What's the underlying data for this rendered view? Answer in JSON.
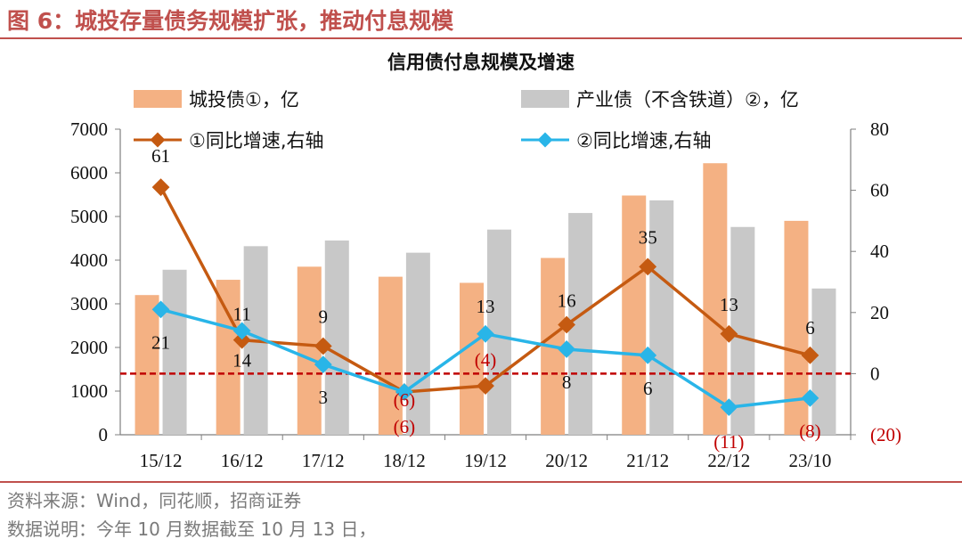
{
  "figure": {
    "title": "图 6：城投存量债务规模扩张，推动付息规模",
    "source": "资料来源：Wind，同花顺，招商证券",
    "note": "数据说明：今年 10 月数据截至 10 月 13 日，"
  },
  "colors": {
    "bar_a": "#f4b183",
    "bar_b": "#c8c8c8",
    "line_a": "#c55a11",
    "line_b": "#29b5e8",
    "ref": "#c00000",
    "accent": "#c0504d"
  },
  "chart_data": {
    "type": "bar",
    "title": "信用债付息规模及增速",
    "categories": [
      "15/12",
      "16/12",
      "17/12",
      "18/12",
      "19/12",
      "20/12",
      "21/12",
      "22/12",
      "23/10"
    ],
    "series": [
      {
        "name": "城投债①，亿",
        "kind": "bar",
        "axis": "left",
        "values": [
          3200,
          3550,
          3850,
          3620,
          3480,
          4050,
          5480,
          6220,
          4900
        ]
      },
      {
        "name": "产业债（不含铁道）②，亿",
        "kind": "bar",
        "axis": "left",
        "values": [
          3780,
          4320,
          4450,
          4170,
          4700,
          5080,
          5370,
          4760,
          3350
        ]
      },
      {
        "name": "①同比增速,右轴",
        "kind": "line",
        "axis": "right",
        "values": [
          61,
          11,
          9,
          -6,
          -4,
          16,
          35,
          13,
          6
        ],
        "labels": [
          "61",
          "11",
          "9",
          "(6)",
          "(4)",
          "16",
          "35",
          "13",
          "6"
        ]
      },
      {
        "name": "②同比增速,右轴",
        "kind": "line",
        "axis": "right",
        "values": [
          21,
          14,
          3,
          -6,
          13,
          8,
          6,
          -11,
          -8
        ],
        "labels": [
          "21",
          "14",
          "3",
          "(6)",
          "13",
          "8",
          "6",
          "(11)",
          "(8)"
        ]
      }
    ],
    "y_left": {
      "min": 0,
      "max": 7000,
      "ticks": [
        "0",
        "1000",
        "2000",
        "3000",
        "4000",
        "5000",
        "6000",
        "7000"
      ]
    },
    "y_right": {
      "min": -20,
      "max": 80,
      "ticks": [
        "(20)",
        "0",
        "20",
        "40",
        "60",
        "80"
      ]
    },
    "reference_line": {
      "axis": "right",
      "value": 0,
      "style": "dashed"
    },
    "legend": "top"
  }
}
